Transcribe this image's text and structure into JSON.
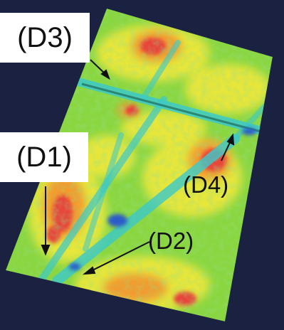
{
  "image": {
    "description_labels": [
      {
        "id": "D3",
        "text": "(D3)"
      },
      {
        "id": "D1",
        "text": "(D1)"
      },
      {
        "id": "D4",
        "text": "(D4)"
      },
      {
        "id": "D2",
        "text": "(D2)"
      }
    ],
    "colors": {
      "background": "#1b2140",
      "plot_red": "#e8453a",
      "plot_orange": "#f39b2d",
      "plot_yellow": "#e6e63a",
      "plot_green": "#56c84a",
      "plot_cyan": "#3cc9c9",
      "plot_blue": "#2a5cc9",
      "label_box": "#ffffff",
      "arrow": "#111111"
    }
  }
}
